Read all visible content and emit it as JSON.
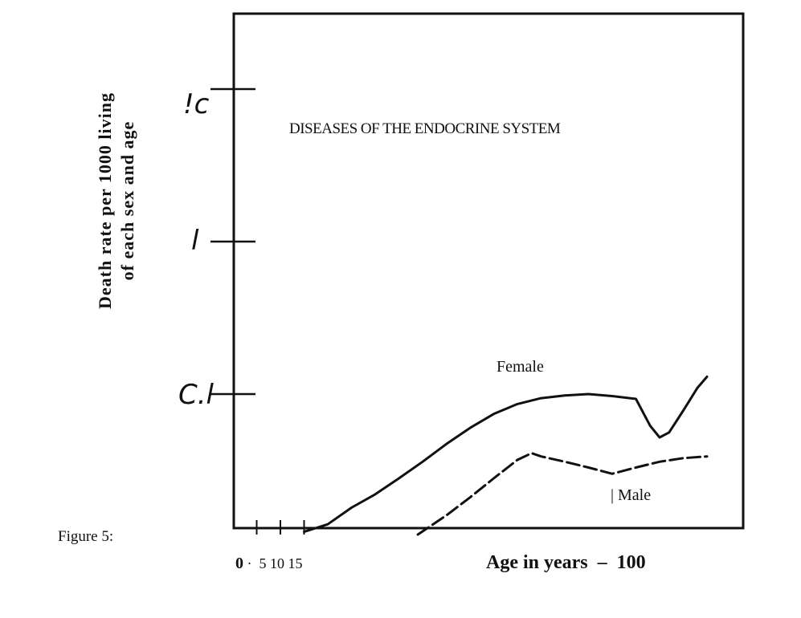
{
  "chart_data": {
    "type": "line",
    "title": "DISEASES OF THE ENDOCRINE SYSTEM",
    "ylabel_line1": "Death rate per 1000 living",
    "ylabel_line2": "of each sex and age",
    "xlabel": "Age in years",
    "x_tick_labels": {
      "zero": "0",
      "dot": "·",
      "mid": "5 10 15",
      "dash": "–",
      "end": "100"
    },
    "y_tick_labels": [
      "C.l",
      "l",
      "!с"
    ],
    "y_scale": "log",
    "y_ticks": [
      0.1,
      1,
      10
    ],
    "xlim": [
      0,
      100
    ],
    "series": [
      {
        "name": "Female",
        "style": "solid",
        "x": [
          15,
          20,
          25,
          30,
          35,
          40,
          45,
          50,
          55,
          60,
          65,
          70,
          75,
          80,
          85,
          88,
          90,
          92,
          95,
          98,
          100
        ],
        "y": [
          0.0125,
          0.014,
          0.018,
          0.022,
          0.028,
          0.036,
          0.047,
          0.06,
          0.074,
          0.086,
          0.094,
          0.098,
          0.1,
          0.097,
          0.093,
          0.062,
          0.052,
          0.056,
          0.078,
          0.11,
          0.13
        ]
      },
      {
        "name": "Male",
        "style": "dashed",
        "x": [
          39,
          45,
          50,
          55,
          60,
          63,
          65,
          70,
          75,
          80,
          85,
          90,
          95,
          100
        ],
        "y": [
          0.012,
          0.016,
          0.021,
          0.028,
          0.037,
          0.041,
          0.039,
          0.036,
          0.033,
          0.03,
          0.033,
          0.036,
          0.038,
          0.039
        ]
      }
    ],
    "figure_label": "Figure 5:"
  }
}
